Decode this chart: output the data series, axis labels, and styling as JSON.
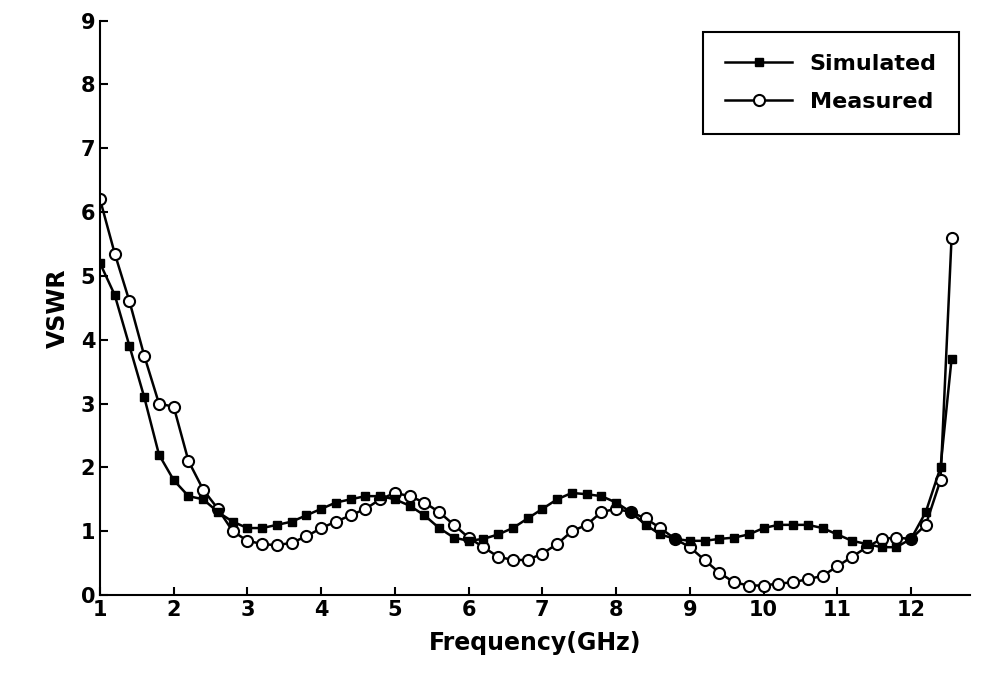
{
  "simulated_x": [
    1.0,
    1.2,
    1.4,
    1.6,
    1.8,
    2.0,
    2.2,
    2.4,
    2.6,
    2.8,
    3.0,
    3.2,
    3.4,
    3.6,
    3.8,
    4.0,
    4.2,
    4.4,
    4.6,
    4.8,
    5.0,
    5.2,
    5.4,
    5.6,
    5.8,
    6.0,
    6.2,
    6.4,
    6.6,
    6.8,
    7.0,
    7.2,
    7.4,
    7.6,
    7.8,
    8.0,
    8.2,
    8.4,
    8.6,
    8.8,
    9.0,
    9.2,
    9.4,
    9.6,
    9.8,
    10.0,
    10.2,
    10.4,
    10.6,
    10.8,
    11.0,
    11.2,
    11.4,
    11.6,
    11.8,
    12.0,
    12.2,
    12.4,
    12.55
  ],
  "simulated_y": [
    5.2,
    4.7,
    3.9,
    3.1,
    2.2,
    1.8,
    1.55,
    1.5,
    1.3,
    1.15,
    1.05,
    1.05,
    1.1,
    1.15,
    1.25,
    1.35,
    1.45,
    1.5,
    1.55,
    1.55,
    1.5,
    1.4,
    1.25,
    1.05,
    0.9,
    0.85,
    0.88,
    0.95,
    1.05,
    1.2,
    1.35,
    1.5,
    1.6,
    1.58,
    1.55,
    1.45,
    1.3,
    1.1,
    0.95,
    0.88,
    0.85,
    0.85,
    0.88,
    0.9,
    0.95,
    1.05,
    1.1,
    1.1,
    1.1,
    1.05,
    0.95,
    0.85,
    0.8,
    0.75,
    0.75,
    0.88,
    1.3,
    2.0,
    3.7
  ],
  "measured_x": [
    1.0,
    1.2,
    1.4,
    1.6,
    1.8,
    2.0,
    2.2,
    2.4,
    2.6,
    2.8,
    3.0,
    3.2,
    3.4,
    3.6,
    3.8,
    4.0,
    4.2,
    4.4,
    4.6,
    4.8,
    5.0,
    5.2,
    5.4,
    5.6,
    5.8,
    6.0,
    6.2,
    6.4,
    6.6,
    6.8,
    7.0,
    7.2,
    7.4,
    7.6,
    7.8,
    8.0,
    8.2,
    8.4,
    8.6,
    8.8,
    9.0,
    9.2,
    9.4,
    9.6,
    9.8,
    10.0,
    10.2,
    10.4,
    10.6,
    10.8,
    11.0,
    11.2,
    11.4,
    11.6,
    11.8,
    12.0,
    12.2,
    12.4,
    12.55
  ],
  "measured_y": [
    6.2,
    5.35,
    4.6,
    3.75,
    3.0,
    2.95,
    2.1,
    1.65,
    1.35,
    1.0,
    0.85,
    0.8,
    0.78,
    0.82,
    0.92,
    1.05,
    1.15,
    1.25,
    1.35,
    1.5,
    1.6,
    1.55,
    1.45,
    1.3,
    1.1,
    0.9,
    0.75,
    0.6,
    0.55,
    0.55,
    0.65,
    0.8,
    1.0,
    1.1,
    1.3,
    1.35,
    1.3,
    1.2,
    1.05,
    0.88,
    0.75,
    0.55,
    0.35,
    0.2,
    0.15,
    0.15,
    0.18,
    0.2,
    0.25,
    0.3,
    0.45,
    0.6,
    0.75,
    0.88,
    0.9,
    0.88,
    1.1,
    1.8,
    5.6
  ],
  "xlabel": "Frequency(GHz)",
  "ylabel": "VSWR",
  "xlim": [
    1,
    12.8
  ],
  "ylim": [
    0,
    9
  ],
  "xticks": [
    1,
    2,
    3,
    4,
    5,
    6,
    7,
    8,
    9,
    10,
    11,
    12
  ],
  "yticks": [
    0,
    1,
    2,
    3,
    4,
    5,
    6,
    7,
    8,
    9
  ],
  "sim_label": "Simulated",
  "meas_label": "Measured",
  "line_color": "#000000",
  "bg_color": "#ffffff",
  "legend_loc": "upper right",
  "marker_interval": 2
}
